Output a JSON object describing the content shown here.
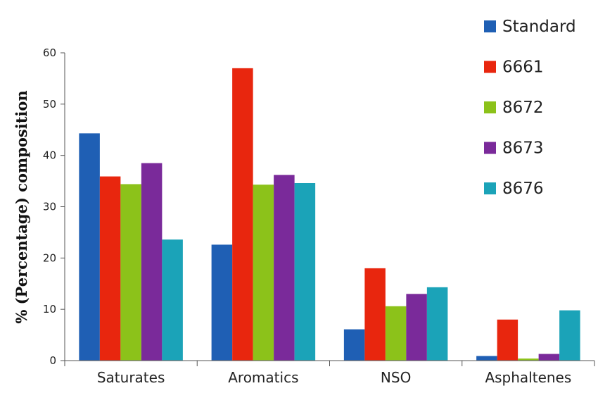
{
  "chart_data": {
    "type": "bar",
    "title": "",
    "xlabel": "",
    "ylabel": "% (Percentage) composition",
    "ylim": [
      0,
      60
    ],
    "yticks": [
      0,
      10,
      20,
      30,
      40,
      50,
      60
    ],
    "legend_position": "top-right",
    "categories": [
      "Saturates",
      "Aromatics",
      "NSO",
      "Asphaltenes"
    ],
    "series": [
      {
        "name": "Standard",
        "color": "#1f5fb4",
        "values": [
          44.3,
          22.6,
          6.1,
          0.9
        ]
      },
      {
        "name": "6661",
        "color": "#e8260e",
        "values": [
          35.9,
          57.0,
          18.0,
          8.0
        ]
      },
      {
        "name": "8672",
        "color": "#8cc21a",
        "values": [
          34.4,
          34.3,
          10.6,
          0.4
        ]
      },
      {
        "name": "8673",
        "color": "#7a2a9a",
        "values": [
          38.5,
          36.2,
          13.0,
          1.3
        ]
      },
      {
        "name": "8676",
        "color": "#1ba3b8",
        "values": [
          23.6,
          34.6,
          14.3,
          9.8
        ]
      }
    ]
  }
}
